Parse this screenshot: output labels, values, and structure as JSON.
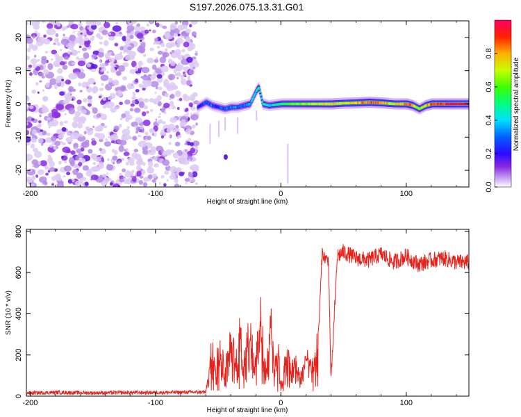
{
  "title": "S197.2026.075.13.31.G01",
  "chart_data": [
    {
      "type": "heatmap",
      "xlabel": "Height of straight line (km)",
      "ylabel": "Frequency (Hz)",
      "xlim": [
        -203,
        150
      ],
      "ylim": [
        -25,
        25
      ],
      "xticks": [
        -200,
        -100,
        0,
        100
      ],
      "yticks": [
        -20,
        -10,
        0,
        10,
        20
      ],
      "noise_region_x": [
        -203,
        -67
      ],
      "signal_ridge": {
        "description_x": [
          -67,
          150
        ],
        "x": [
          -67,
          -60,
          -55,
          -50,
          -45,
          -40,
          -35,
          -30,
          -25,
          -20,
          -18,
          -15,
          -10,
          0,
          10,
          20,
          30,
          40,
          50,
          60,
          70,
          80,
          90,
          100,
          105,
          110,
          115,
          120,
          130,
          140,
          150
        ],
        "freq": [
          -1,
          0.5,
          -0.5,
          -1,
          -1.5,
          -1,
          -1,
          -0.5,
          0,
          4,
          5,
          0,
          -0.5,
          0,
          0,
          0,
          0,
          0,
          0.2,
          0.3,
          0.5,
          0.3,
          0,
          0,
          -0.5,
          -1.5,
          -0.5,
          0,
          0,
          0,
          0
        ],
        "amplitude": [
          0.2,
          0.3,
          0.3,
          0.25,
          0.3,
          0.35,
          0.3,
          0.35,
          0.4,
          0.45,
          0.5,
          0.45,
          0.4,
          0.5,
          0.6,
          0.65,
          0.7,
          0.8,
          0.7,
          0.75,
          0.85,
          0.8,
          0.7,
          0.85,
          0.8,
          0.6,
          0.75,
          0.85,
          0.9,
          0.95,
          0.95
        ]
      },
      "colorbar": {
        "label": "Normalized spectral amplitude",
        "range": [
          0,
          1
        ],
        "ticks": [
          "0.0",
          "0.2",
          "0.4",
          "0.6",
          "0.8"
        ]
      }
    },
    {
      "type": "line",
      "xlabel": "Height of straight line (km)",
      "ylabel": "SNR (10 * v/v)",
      "xlim": [
        -203,
        150
      ],
      "ylim": [
        0,
        810
      ],
      "xticks": [
        -200,
        -100,
        0,
        100
      ],
      "yticks": [
        0,
        200,
        400,
        600,
        800
      ],
      "series": [
        {
          "name": "SNR",
          "color": "#e8201a",
          "x": [
            -203,
            -180,
            -150,
            -120,
            -90,
            -60,
            -55,
            -52,
            -50,
            -45,
            -40,
            -35,
            -32,
            -30,
            -25,
            -20,
            -15,
            -12,
            -8,
            -5,
            -2,
            0,
            5,
            8,
            12,
            15,
            20,
            25,
            30,
            33,
            35,
            38,
            40,
            45,
            50,
            60,
            70,
            80,
            90,
            100,
            110,
            120,
            130,
            140,
            150
          ],
          "values": [
            15,
            18,
            16,
            17,
            18,
            20,
            250,
            150,
            320,
            150,
            300,
            180,
            400,
            200,
            350,
            180,
            520,
            120,
            380,
            150,
            310,
            50,
            250,
            120,
            200,
            100,
            200,
            150,
            300,
            700,
            670,
            660,
            60,
            680,
            700,
            670,
            660,
            690,
            650,
            680,
            640,
            660,
            670,
            650,
            650
          ]
        }
      ]
    }
  ]
}
